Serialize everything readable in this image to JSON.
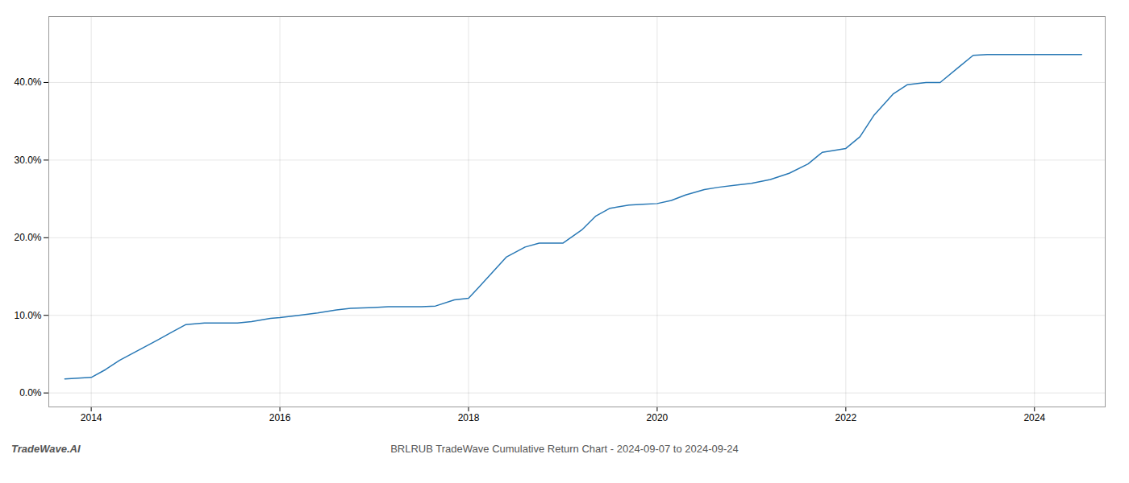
{
  "chart_data": {
    "type": "line",
    "title": "BRLRUB TradeWave Cumulative Return Chart - 2024-09-07 to 2024-09-24",
    "annotations": [
      "TradeWave.AI"
    ],
    "color": "#2878b5",
    "grid": true,
    "xlim": [
      2013.55,
      2024.75
    ],
    "xticks": [
      2014,
      2016,
      2018,
      2020,
      2022,
      2024
    ],
    "ylim": [
      -0.018,
      0.485
    ],
    "yticks": [
      {
        "value": 0.0,
        "label": "0.0%"
      },
      {
        "value": 0.1,
        "label": "10.0%"
      },
      {
        "value": 0.2,
        "label": "20.0%"
      },
      {
        "value": 0.3,
        "label": "30.0%"
      },
      {
        "value": 0.4,
        "label": "40.0%"
      }
    ],
    "x": [
      2013.72,
      2014.0,
      2014.15,
      2014.3,
      2014.5,
      2014.7,
      2014.85,
      2015.0,
      2015.2,
      2015.4,
      2015.55,
      2015.7,
      2015.9,
      2016.0,
      2016.2,
      2016.4,
      2016.6,
      2016.75,
      2017.0,
      2017.15,
      2017.3,
      2017.5,
      2017.65,
      2017.85,
      2018.0,
      2018.1,
      2018.25,
      2018.4,
      2018.6,
      2018.75,
      2019.0,
      2019.2,
      2019.35,
      2019.5,
      2019.7,
      2019.85,
      2020.0,
      2020.15,
      2020.3,
      2020.5,
      2020.65,
      2020.85,
      2021.0,
      2021.2,
      2021.4,
      2021.6,
      2021.75,
      2022.0,
      2022.15,
      2022.3,
      2022.5,
      2022.65,
      2022.85,
      2023.0,
      2023.2,
      2023.35,
      2023.5,
      2023.65,
      2023.85,
      2024.0,
      2024.2,
      2024.5
    ],
    "values": [
      0.018,
      0.02,
      0.03,
      0.042,
      0.055,
      0.068,
      0.078,
      0.088,
      0.09,
      0.09,
      0.09,
      0.092,
      0.096,
      0.097,
      0.1,
      0.103,
      0.107,
      0.109,
      0.11,
      0.111,
      0.111,
      0.111,
      0.112,
      0.12,
      0.122,
      0.135,
      0.155,
      0.175,
      0.188,
      0.193,
      0.193,
      0.21,
      0.228,
      0.238,
      0.242,
      0.243,
      0.244,
      0.248,
      0.255,
      0.262,
      0.265,
      0.268,
      0.27,
      0.275,
      0.283,
      0.295,
      0.31,
      0.315,
      0.33,
      0.358,
      0.385,
      0.397,
      0.4,
      0.4,
      0.42,
      0.435,
      0.436,
      0.436,
      0.436,
      0.436,
      0.436,
      0.436
    ]
  }
}
